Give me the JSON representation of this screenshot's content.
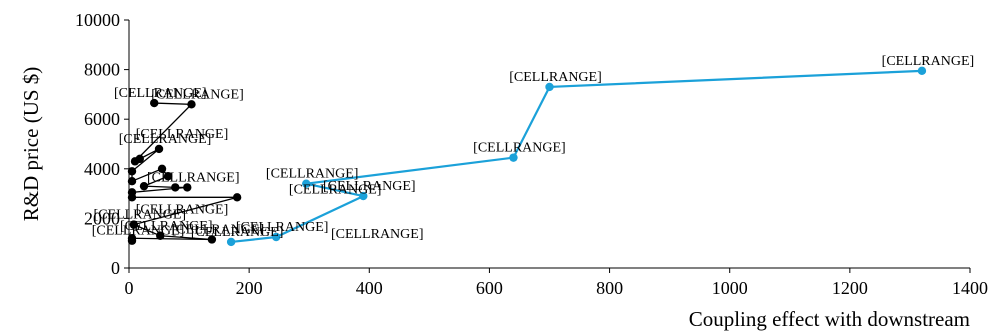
{
  "chart_data": {
    "type": "scatter",
    "xlabel": "Coupling effect with downstream",
    "ylabel": "R&D price (US $)",
    "xlim": [
      0,
      1400
    ],
    "ylim": [
      0,
      10000
    ],
    "xticks": [
      0,
      200,
      400,
      600,
      800,
      1000,
      1200,
      1400
    ],
    "yticks": [
      0,
      2000,
      4000,
      6000,
      8000,
      10000
    ],
    "grid": false,
    "legend": "none",
    "series": [
      {
        "color": "#000000",
        "points": [
          {
            "x": 42,
            "y": 6650,
            "label": "[CELLRANGE]"
          },
          {
            "x": 104,
            "y": 6600,
            "label": "[CELLRANGE]"
          },
          {
            "x": 10,
            "y": 4300
          },
          {
            "x": 18,
            "y": 4400
          },
          {
            "x": 50,
            "y": 4800,
            "label": "[CELLRANGE]"
          },
          {
            "x": 5,
            "y": 3900
          },
          {
            "x": 5,
            "y": 3500
          },
          {
            "x": 55,
            "y": 4000
          },
          {
            "x": 65,
            "y": 3700
          },
          {
            "x": 25,
            "y": 3300
          },
          {
            "x": 77,
            "y": 3250
          },
          {
            "x": 97,
            "y": 3250,
            "label": "[CELLRANGE]"
          },
          {
            "x": 5,
            "y": 3050
          },
          {
            "x": 5,
            "y": 2850
          },
          {
            "x": 180,
            "y": 2850
          },
          {
            "x": 8,
            "y": 1750,
            "label": "[CELLRANGE]"
          },
          {
            "x": 52,
            "y": 1300,
            "label": "[CELLRANGE]"
          },
          {
            "x": 138,
            "y": 1150,
            "label": "[CELLRANGE]"
          },
          {
            "x": 5,
            "y": 1200
          },
          {
            "x": 5,
            "y": 1100,
            "label": "[CELLRANGE]"
          }
        ]
      },
      {
        "color": "#1ba1d9",
        "points": [
          {
            "x": 170,
            "y": 1050,
            "label": "[CELLRANGE]"
          },
          {
            "x": 245,
            "y": 1250,
            "label": "[CELLRANGE]"
          },
          {
            "x": 390,
            "y": 2900,
            "label": "[CELLRANGE]"
          },
          {
            "x": 295,
            "y": 3400,
            "label": "[CELLRANGE]"
          },
          {
            "x": 640,
            "y": 4450,
            "label": "[CELLRANGE]"
          },
          {
            "x": 700,
            "y": 7300,
            "label": "[CELLRANGE]"
          },
          {
            "x": 1320,
            "y": 7950,
            "label": "[CELLRANGE]"
          }
        ]
      }
    ],
    "extra_labels": [
      {
        "x": 5,
        "y": 5250,
        "label": "[CELLRANGE]"
      },
      {
        "x": 5,
        "y": 2200,
        "label": "[CELLRANGE]"
      },
      {
        "x": 260,
        "y": 3000,
        "label": "[CELLRANGE]"
      },
      {
        "x": 330,
        "y": 1200,
        "label": "[CELLRANGE]"
      }
    ]
  }
}
